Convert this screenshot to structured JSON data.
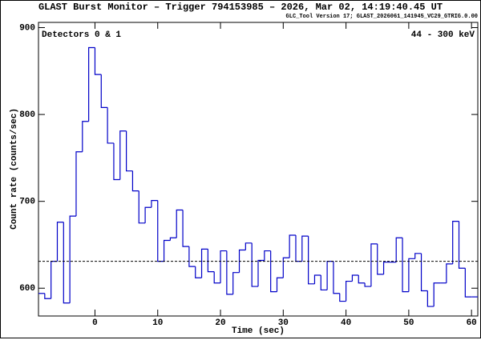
{
  "chart_data": {
    "type": "histogram",
    "title": "GLAST Burst Monitor  –  Trigger 794153985  –  2026, Mar 02, 14:19:40.45 UT",
    "subtitle": "GLC_Tool Version 17; GLAST_2026061_141945_VC29_GTRIG.0.00",
    "annotations": [
      "Detectors 0 & 1",
      "44 - 300 keV"
    ],
    "x_label": "Time (sec)",
    "y_label": "Count rate (counts/sec)",
    "bins": [
      -9,
      -8,
      -7,
      -6,
      -5,
      -4,
      -3,
      -2,
      -1,
      0,
      1,
      2,
      3,
      4,
      5,
      6,
      7,
      8,
      9,
      10,
      11,
      12,
      13,
      14,
      15,
      16,
      17,
      18,
      19,
      20,
      21,
      22,
      23,
      24,
      25,
      26,
      27,
      28,
      29,
      30,
      31,
      32,
      33,
      34,
      35,
      36,
      37,
      38,
      39,
      40,
      41,
      42,
      43,
      44,
      45,
      46,
      47,
      48,
      49,
      50,
      51,
      52,
      53,
      54,
      55,
      56,
      57,
      58,
      59,
      60,
      61
    ],
    "values": [
      594,
      588,
      631,
      676,
      583,
      683,
      757,
      792,
      877,
      846,
      808,
      767,
      725,
      781,
      735,
      712,
      675,
      693,
      701,
      631,
      655,
      658,
      690,
      648,
      625,
      612,
      645,
      619,
      606,
      643,
      593,
      618,
      644,
      652,
      602,
      632,
      643,
      596,
      612,
      635,
      661,
      631,
      660,
      605,
      615,
      598,
      631,
      594,
      585,
      608,
      615,
      606,
      602,
      651,
      616,
      630,
      630,
      658,
      596,
      634,
      640,
      597,
      579,
      606,
      606,
      628,
      677,
      623,
      590,
      590
    ],
    "color": "#0000c8",
    "background_level": 631,
    "xlim": [
      -9,
      61
    ],
    "ylim": [
      568,
      906
    ],
    "xticks": [
      0,
      10,
      20,
      30,
      40,
      50,
      60
    ],
    "yticks": [
      600,
      700,
      800,
      900
    ]
  }
}
